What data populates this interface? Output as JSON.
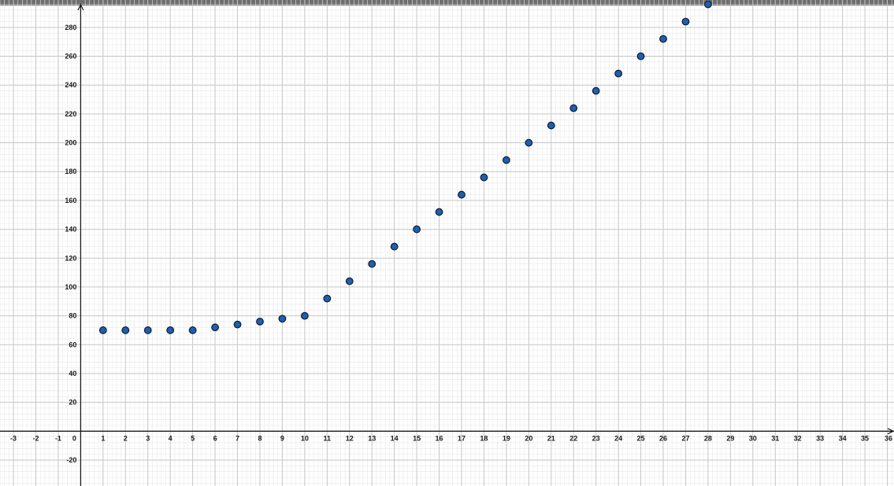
{
  "chart_data": {
    "type": "scatter",
    "title": "",
    "xlabel": "",
    "ylabel": "",
    "xlim": [
      -3.6,
      36.3
    ],
    "ylim": [
      -38,
      299
    ],
    "grid": true,
    "x_ticks": [
      -3,
      -2,
      -1,
      1,
      2,
      3,
      4,
      5,
      6,
      7,
      8,
      9,
      10,
      11,
      12,
      13,
      14,
      15,
      16,
      17,
      18,
      19,
      20,
      21,
      22,
      23,
      24,
      25,
      26,
      27,
      28,
      29,
      30,
      31,
      32,
      33,
      34,
      35,
      36
    ],
    "y_ticks": [
      -20,
      20,
      40,
      60,
      80,
      100,
      120,
      140,
      160,
      180,
      200,
      220,
      240,
      260,
      280
    ],
    "origin_label": "0",
    "points": [
      {
        "x": 1,
        "y": 70
      },
      {
        "x": 2,
        "y": 70
      },
      {
        "x": 3,
        "y": 70
      },
      {
        "x": 4,
        "y": 70
      },
      {
        "x": 5,
        "y": 70
      },
      {
        "x": 6,
        "y": 72
      },
      {
        "x": 7,
        "y": 74
      },
      {
        "x": 8,
        "y": 76
      },
      {
        "x": 9,
        "y": 78
      },
      {
        "x": 10,
        "y": 80
      },
      {
        "x": 11,
        "y": 92
      },
      {
        "x": 12,
        "y": 104
      },
      {
        "x": 13,
        "y": 116
      },
      {
        "x": 14,
        "y": 128
      },
      {
        "x": 15,
        "y": 140
      },
      {
        "x": 16,
        "y": 152
      },
      {
        "x": 17,
        "y": 164
      },
      {
        "x": 18,
        "y": 176
      },
      {
        "x": 19,
        "y": 188
      },
      {
        "x": 20,
        "y": 200
      },
      {
        "x": 21,
        "y": 212
      },
      {
        "x": 22,
        "y": 224
      },
      {
        "x": 23,
        "y": 236
      },
      {
        "x": 24,
        "y": 248
      },
      {
        "x": 25,
        "y": 260
      },
      {
        "x": 26,
        "y": 272
      },
      {
        "x": 27,
        "y": 284
      },
      {
        "x": 28,
        "y": 296
      }
    ],
    "colors": {
      "point_fill": "#1f5fae",
      "point_stroke": "#0d1b33",
      "axis": "#1a1a1a",
      "grid_major": "#c6c6c6",
      "grid_minor": "#e8e8e8"
    }
  }
}
